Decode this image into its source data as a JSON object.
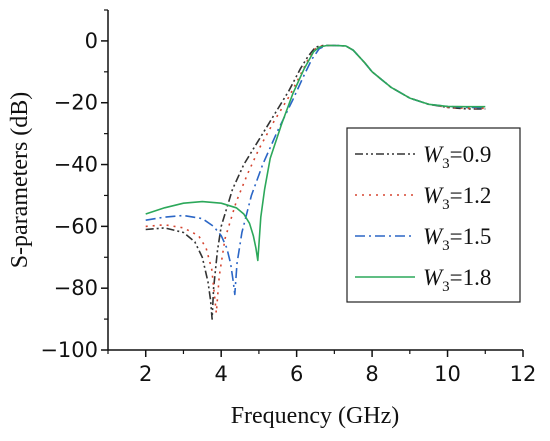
{
  "chart_data": {
    "type": "line",
    "title": "",
    "xlabel": "Frequency (GHz)",
    "ylabel": "S-parameters (dB)",
    "xlim": [
      1,
      12
    ],
    "ylim": [
      -100,
      10
    ],
    "xticks": [
      2,
      4,
      6,
      8,
      10,
      12
    ],
    "yticks": [
      -100,
      -80,
      -60,
      -40,
      -20,
      0
    ],
    "xtick_labels": [
      "2",
      "4",
      "6",
      "8",
      "10",
      "12"
    ],
    "ytick_labels": [
      "−100",
      "−80",
      "−60",
      "−40",
      "−20",
      "0"
    ],
    "grid": false,
    "legend_position": "right",
    "series": [
      {
        "name": "W3=0.9",
        "legend": {
          "symbol": "W",
          "subscript": "3",
          "value": "=0.9"
        },
        "color": "#333333",
        "dash": "8,3,2,3,2,3",
        "x": [
          2.0,
          2.5,
          3.0,
          3.3,
          3.5,
          3.65,
          3.72,
          3.76,
          3.8,
          3.9,
          4.0,
          4.3,
          4.6,
          5.0,
          5.4,
          5.8,
          6.1,
          6.3,
          6.5,
          6.7,
          7.0,
          7.3,
          7.5,
          7.8,
          8.0,
          8.5,
          9.0,
          9.5,
          10.0,
          10.5,
          11.0
        ],
        "y": [
          -61,
          -60.5,
          -62,
          -65,
          -70,
          -78,
          -84,
          -90,
          -80,
          -68,
          -60,
          -48,
          -40,
          -32,
          -24,
          -16,
          -9,
          -5,
          -2,
          -1.5,
          -1.5,
          -1.6,
          -3,
          -7,
          -10,
          -15,
          -18.5,
          -20.5,
          -21.5,
          -22,
          -22
        ]
      },
      {
        "name": "W3=1.2",
        "legend": {
          "symbol": "W",
          "subscript": "3",
          "value": "=1.2"
        },
        "color": "#d64530",
        "dash": "2,5",
        "x": [
          2.0,
          2.5,
          3.0,
          3.4,
          3.6,
          3.75,
          3.82,
          3.87,
          3.95,
          4.1,
          4.4,
          4.7,
          5.0,
          5.4,
          5.8,
          6.1,
          6.3,
          6.5,
          6.7,
          7.0,
          7.3,
          7.5,
          7.8,
          8.0,
          8.5,
          9.0,
          9.5,
          10.0,
          10.5,
          11.0
        ],
        "y": [
          -60,
          -59.5,
          -60.5,
          -63,
          -67,
          -74,
          -82,
          -88,
          -76,
          -64,
          -52,
          -43,
          -35,
          -26,
          -18,
          -11,
          -6,
          -2.5,
          -1.5,
          -1.5,
          -1.6,
          -3,
          -7,
          -10,
          -15,
          -18.5,
          -20.5,
          -21.5,
          -21.8,
          -21.8
        ]
      },
      {
        "name": "W3=1.5",
        "legend": {
          "symbol": "W",
          "subscript": "3",
          "value": "=1.5"
        },
        "color": "#2b66c6",
        "dash": "10,4,2,4",
        "x": [
          2.0,
          2.5,
          3.0,
          3.5,
          3.8,
          4.0,
          4.15,
          4.25,
          4.32,
          4.36,
          4.42,
          4.55,
          4.8,
          5.1,
          5.5,
          5.9,
          6.2,
          6.4,
          6.6,
          6.8,
          7.0,
          7.3,
          7.5,
          7.8,
          8.0,
          8.5,
          9.0,
          9.5,
          10.0,
          10.5,
          11.0
        ],
        "y": [
          -58,
          -57,
          -56.5,
          -57.5,
          -60,
          -63,
          -67,
          -72,
          -78,
          -82,
          -72,
          -62,
          -50,
          -40,
          -29,
          -19,
          -11,
          -6,
          -2.5,
          -1.5,
          -1.5,
          -1.6,
          -3,
          -7,
          -10,
          -15,
          -18.5,
          -20.5,
          -21.2,
          -21.5,
          -21.5
        ]
      },
      {
        "name": "W3=1.8",
        "legend": {
          "symbol": "W",
          "subscript": "3",
          "value": "=1.8"
        },
        "color": "#2ca85a",
        "dash": "",
        "x": [
          2.0,
          2.5,
          3.0,
          3.5,
          4.0,
          4.4,
          4.6,
          4.75,
          4.85,
          4.92,
          4.97,
          5.0,
          5.05,
          5.15,
          5.3,
          5.6,
          5.9,
          6.2,
          6.45,
          6.6,
          6.8,
          7.0,
          7.3,
          7.5,
          7.8,
          8.0,
          8.5,
          9.0,
          9.5,
          10.0,
          10.5,
          11.0
        ],
        "y": [
          -56,
          -54,
          -52.5,
          -52,
          -52.5,
          -54,
          -56,
          -59,
          -63,
          -67,
          -71,
          -66,
          -57,
          -48,
          -38,
          -27,
          -17,
          -9,
          -3.5,
          -2,
          -1.5,
          -1.5,
          -1.6,
          -3,
          -7,
          -10,
          -15,
          -18.5,
          -20.5,
          -21.2,
          -21.3,
          -21.3
        ]
      }
    ]
  }
}
